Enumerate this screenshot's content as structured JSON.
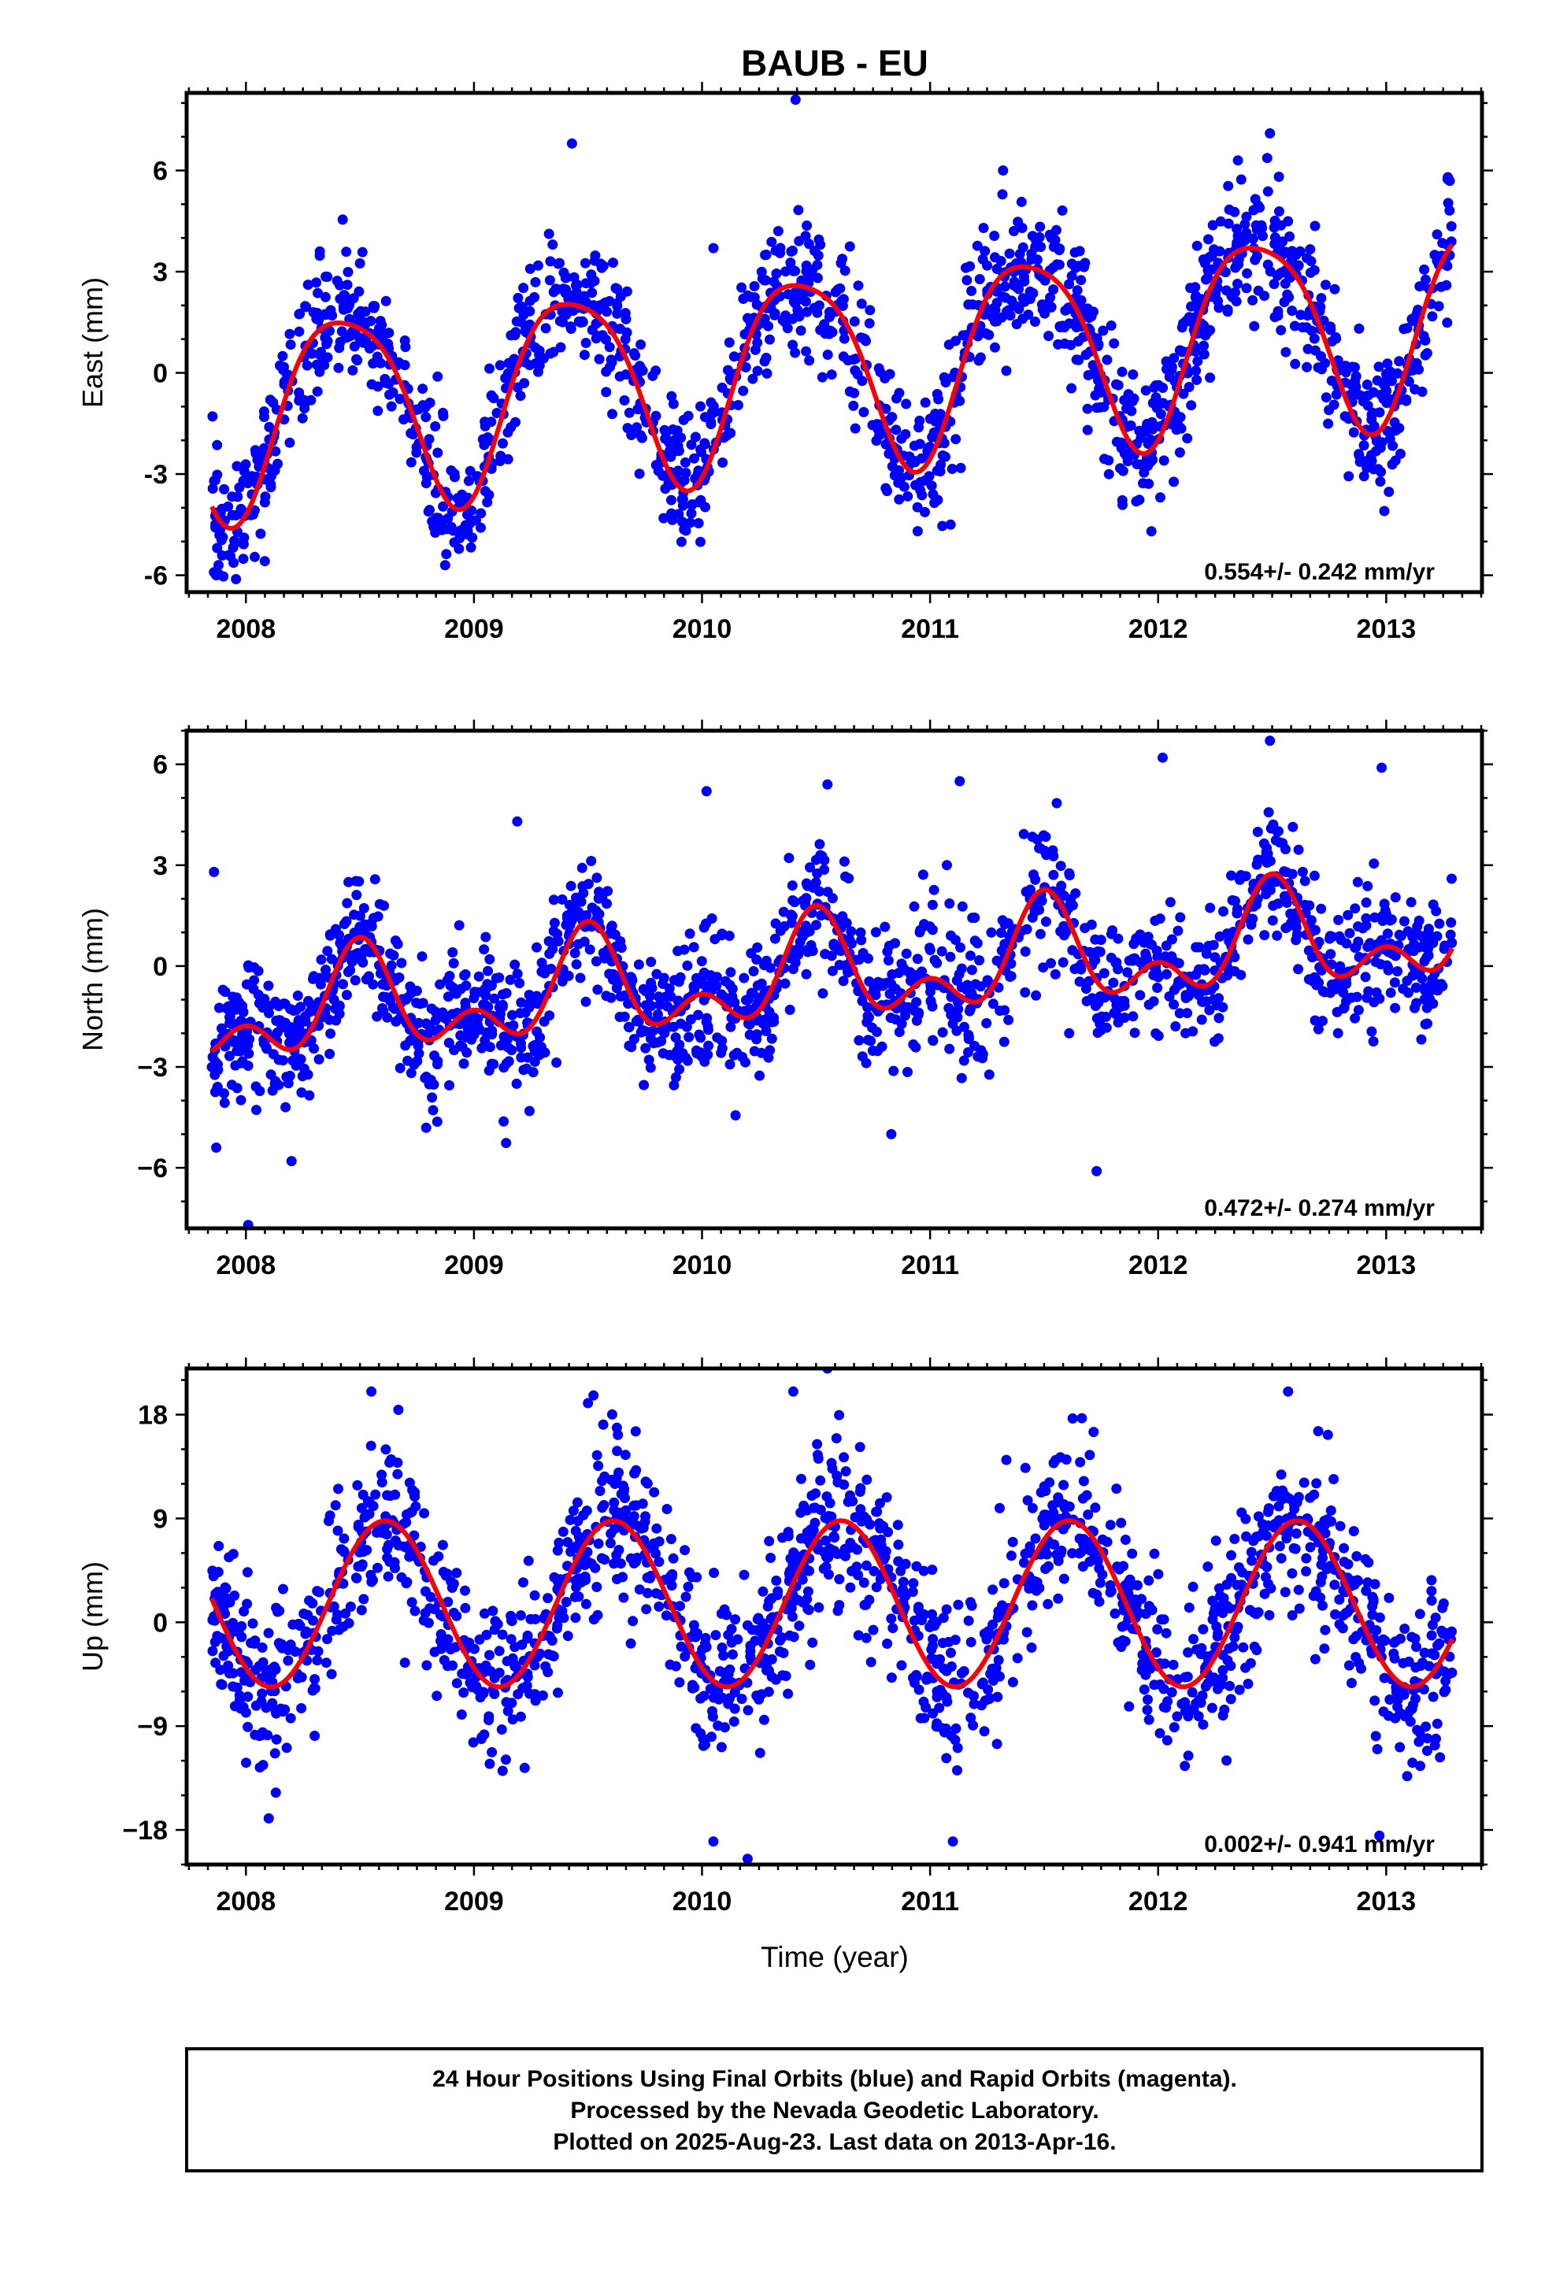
{
  "title": "BAUB - EU",
  "xlabel": "Time (year)",
  "x_tick_labels": [
    "2008",
    "2009",
    "2010",
    "2011",
    "2012",
    "2013"
  ],
  "footer": {
    "line1": "24 Hour Positions Using Final Orbits (blue) and Rapid Orbits (magenta).",
    "line2": "Processed by the Nevada Geodetic Laboratory.",
    "line3": "Plotted on 2025-Aug-23. Last data on 2013-Apr-16."
  },
  "colors": {
    "final_orbits": "#0000ff",
    "model_fit": "#ff0000",
    "rapid_orbits": "#ff00ff"
  },
  "chart_data": [
    {
      "type": "scatter",
      "ylabel": "East (mm)",
      "rate_label": "0.554+/- 0.242 mm/yr",
      "xlim": [
        2007.74,
        2013.42
      ],
      "ylim": [
        -6.5,
        8.3
      ],
      "x_ticks": [
        2008,
        2009,
        2010,
        2011,
        2012,
        2013
      ],
      "y_ticks": [
        -6,
        -3,
        0,
        3,
        6
      ],
      "y_tick_labels": [
        "-6",
        "-3",
        "0",
        "3",
        "6"
      ],
      "x_start": 2007.85,
      "x_end": 2013.29,
      "model": {
        "slope": 0.554,
        "x0": 2010.5,
        "y0": 0.2,
        "ann_amp": 2.9,
        "ann_peak": 2008.43,
        "semi_amp": 0.5,
        "semi_peak": 2008.2
      },
      "scatter_sd": 1.0,
      "points_per_year": 300,
      "outliers": [
        {
          "x": 2007.87,
          "y": -6.0
        },
        {
          "x": 2007.88,
          "y": -5.7
        },
        {
          "x": 2009.43,
          "y": 6.8
        },
        {
          "x": 2010.41,
          "y": 8.1
        },
        {
          "x": 2011.32,
          "y": 6.0
        },
        {
          "x": 2012.35,
          "y": 6.3
        },
        {
          "x": 2012.49,
          "y": 7.1
        },
        {
          "x": 2013.27,
          "y": 5.8
        },
        {
          "x": 2010.05,
          "y": 3.7
        },
        {
          "x": 2011.09,
          "y": -4.5
        }
      ]
    },
    {
      "type": "scatter",
      "ylabel": "North (mm)",
      "rate_label": "0.472+/- 0.274 mm/yr",
      "xlim": [
        2007.74,
        2013.42
      ],
      "ylim": [
        -7.8,
        7.0
      ],
      "x_ticks": [
        2008,
        2009,
        2010,
        2011,
        2012,
        2013
      ],
      "y_ticks": [
        -6,
        -3,
        0,
        3,
        6
      ],
      "y_tick_labels": [
        "−6",
        "−3",
        "0",
        "3",
        "6"
      ],
      "x_start": 2007.85,
      "x_end": 2013.29,
      "model": {
        "slope": 0.472,
        "x0": 2010.5,
        "y0": -0.3,
        "ann_amp": 1.2,
        "ann_peak": 2008.5,
        "semi_amp": 0.9,
        "semi_peak": 2008.0
      },
      "scatter_sd": 1.0,
      "points_per_year": 300,
      "outliers": [
        {
          "x": 2007.86,
          "y": 2.8
        },
        {
          "x": 2007.87,
          "y": -5.4
        },
        {
          "x": 2008.01,
          "y": -7.7
        },
        {
          "x": 2008.2,
          "y": -5.8
        },
        {
          "x": 2009.19,
          "y": 4.3
        },
        {
          "x": 2010.02,
          "y": 5.2
        },
        {
          "x": 2010.55,
          "y": 5.4
        },
        {
          "x": 2011.13,
          "y": 5.5
        },
        {
          "x": 2011.73,
          "y": -6.1
        },
        {
          "x": 2012.02,
          "y": 6.2
        },
        {
          "x": 2012.49,
          "y": 6.7
        },
        {
          "x": 2012.98,
          "y": 5.9
        },
        {
          "x": 2010.83,
          "y": -5.0
        }
      ]
    },
    {
      "type": "scatter",
      "ylabel": "Up (mm)",
      "rate_label": "0.002+/- 0.941 mm/yr",
      "xlim": [
        2007.74,
        2013.42
      ],
      "ylim": [
        -21.0,
        22.0
      ],
      "x_ticks": [
        2008,
        2009,
        2010,
        2011,
        2012,
        2013
      ],
      "y_ticks": [
        -18,
        -9,
        0,
        9,
        18
      ],
      "y_tick_labels": [
        "−18",
        "−9",
        "0",
        "9",
        "18"
      ],
      "x_start": 2007.85,
      "x_end": 2013.29,
      "model": {
        "slope": 0.002,
        "x0": 2010.5,
        "y0": 1.6,
        "ann_amp": 7.2,
        "ann_peak": 2008.61,
        "semi_amp": 0.0,
        "semi_peak": 2008.0
      },
      "scatter_sd": 3.6,
      "points_per_year": 300,
      "outliers": [
        {
          "x": 2008.55,
          "y": 20.0
        },
        {
          "x": 2009.5,
          "y": 19.0
        },
        {
          "x": 2010.4,
          "y": 20.0
        },
        {
          "x": 2010.55,
          "y": 22.0
        },
        {
          "x": 2012.57,
          "y": 20.0
        },
        {
          "x": 2010.05,
          "y": -19.0
        },
        {
          "x": 2010.2,
          "y": -20.5
        },
        {
          "x": 2011.1,
          "y": -19.0
        },
        {
          "x": 2012.97,
          "y": -18.5
        },
        {
          "x": 2008.1,
          "y": -17.0
        }
      ]
    }
  ]
}
